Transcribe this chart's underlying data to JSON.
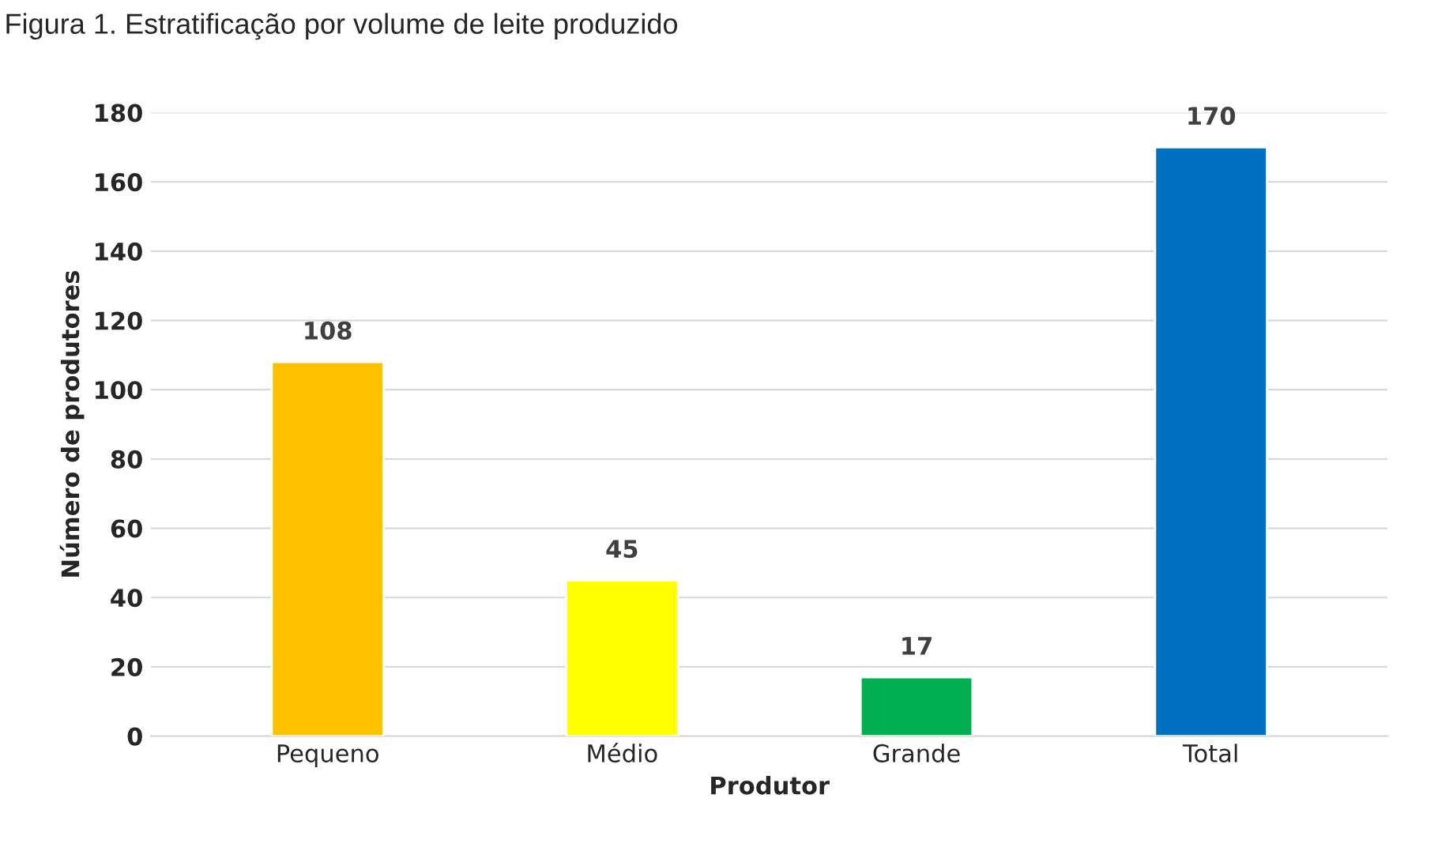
{
  "chart_data": {
    "type": "bar",
    "title": "Figura 1. Estratificação por volume de leite produzido",
    "xlabel": "Produtor",
    "ylabel": "Número de produtores",
    "categories": [
      "Pequeno",
      "Médio",
      "Grande",
      "Total"
    ],
    "values": [
      108,
      45,
      17,
      170
    ],
    "colors": [
      "#ffc000",
      "#ffff00",
      "#00b050",
      "#0070c0"
    ],
    "ylim": [
      0,
      180
    ],
    "yticks": [
      0,
      20,
      40,
      60,
      80,
      100,
      120,
      140,
      160,
      180
    ],
    "grid": "y",
    "data_labels": true
  }
}
